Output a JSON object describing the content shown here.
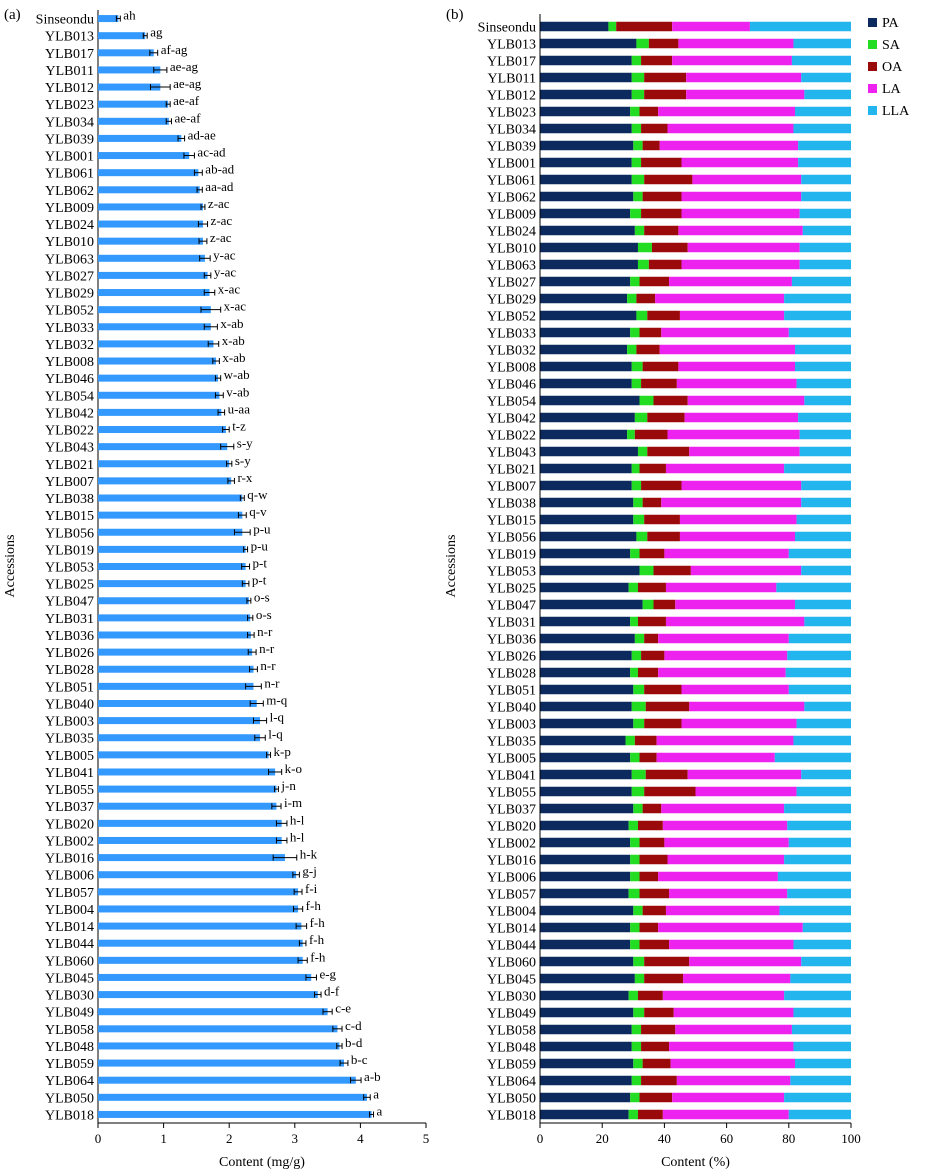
{
  "panels": {
    "a": {
      "label": "(a)"
    },
    "b": {
      "label": "(b)"
    }
  },
  "colors": {
    "bar_a": "#3399ff",
    "PA": "#0c2a5e",
    "SA": "#22dd22",
    "OA": "#9b0a0a",
    "LA": "#ee22ee",
    "LLA": "#22b5ee"
  },
  "chart_data": [
    {
      "id": "a",
      "type": "bar",
      "orientation": "horizontal",
      "title": "",
      "xlabel": "Content (mg/g)",
      "ylabel": "Accessions",
      "xlim": [
        0,
        5
      ],
      "xticks": [
        "0",
        "1",
        "2",
        "3",
        "4",
        "5"
      ],
      "grid": false,
      "error_bars": true,
      "categories": [
        "Sinseondu",
        "YLB013",
        "YLB017",
        "YLB011",
        "YLB012",
        "YLB023",
        "YLB034",
        "YLB039",
        "YLB001",
        "YLB061",
        "YLB062",
        "YLB009",
        "YLB024",
        "YLB010",
        "YLB063",
        "YLB027",
        "YLB029",
        "YLB052",
        "YLB033",
        "YLB032",
        "YLB008",
        "YLB046",
        "YLB054",
        "YLB042",
        "YLB022",
        "YLB043",
        "YLB021",
        "YLB007",
        "YLB038",
        "YLB015",
        "YLB056",
        "YLB019",
        "YLB053",
        "YLB025",
        "YLB047",
        "YLB031",
        "YLB036",
        "YLB026",
        "YLB028",
        "YLB051",
        "YLB040",
        "YLB003",
        "YLB035",
        "YLB005",
        "YLB041",
        "YLB055",
        "YLB037",
        "YLB020",
        "YLB002",
        "YLB016",
        "YLB006",
        "YLB057",
        "YLB004",
        "YLB014",
        "YLB044",
        "YLB060",
        "YLB045",
        "YLB030",
        "YLB049",
        "YLB058",
        "YLB048",
        "YLB059",
        "YLB064",
        "YLB050",
        "YLB018"
      ],
      "values": [
        0.31,
        0.72,
        0.85,
        0.95,
        0.95,
        1.07,
        1.08,
        1.27,
        1.39,
        1.53,
        1.55,
        1.6,
        1.6,
        1.6,
        1.63,
        1.67,
        1.7,
        1.72,
        1.72,
        1.76,
        1.8,
        1.83,
        1.85,
        1.88,
        1.95,
        1.97,
        2.0,
        2.03,
        2.2,
        2.2,
        2.2,
        2.25,
        2.25,
        2.25,
        2.3,
        2.32,
        2.33,
        2.35,
        2.37,
        2.37,
        2.42,
        2.47,
        2.47,
        2.6,
        2.7,
        2.72,
        2.72,
        2.8,
        2.8,
        2.85,
        3.02,
        3.05,
        3.05,
        3.1,
        3.12,
        3.12,
        3.25,
        3.35,
        3.5,
        3.65,
        3.68,
        3.75,
        3.93,
        4.1,
        4.17
      ],
      "errors": [
        0.03,
        0.03,
        0.06,
        0.1,
        0.15,
        0.03,
        0.04,
        0.05,
        0.08,
        0.06,
        0.04,
        0.03,
        0.07,
        0.06,
        0.08,
        0.05,
        0.08,
        0.15,
        0.1,
        0.08,
        0.05,
        0.04,
        0.06,
        0.05,
        0.05,
        0.1,
        0.04,
        0.05,
        0.03,
        0.06,
        0.12,
        0.03,
        0.06,
        0.05,
        0.03,
        0.04,
        0.05,
        0.06,
        0.06,
        0.12,
        0.1,
        0.1,
        0.08,
        0.03,
        0.1,
        0.03,
        0.07,
        0.08,
        0.08,
        0.18,
        0.05,
        0.06,
        0.07,
        0.08,
        0.05,
        0.07,
        0.08,
        0.05,
        0.07,
        0.07,
        0.04,
        0.06,
        0.08,
        0.05,
        0.03
      ],
      "annotations": [
        "ah",
        "ag",
        "af-ag",
        "ae-ag",
        "ae-ag",
        "ae-af",
        "ae-af",
        "ad-ae",
        "ac-ad",
        "ab-ad",
        "aa-ad",
        "z-ac",
        "z-ac",
        "z-ac",
        "y-ac",
        "y-ac",
        "x-ac",
        "x-ac",
        "x-ab",
        "x-ab",
        "x-ab",
        "w-ab",
        "v-ab",
        "u-aa",
        "t-z",
        "s-y",
        "s-y",
        "r-x",
        "q-w",
        "q-v",
        "p-u",
        "p-u",
        "p-t",
        "p-t",
        "o-s",
        "o-s",
        "n-r",
        "n-r",
        "n-r",
        "n-r",
        "m-q",
        "l-q",
        "l-q",
        "k-p",
        "k-o",
        "j-n",
        "i-m",
        "h-l",
        "h-l",
        "h-k",
        "g-j",
        "f-i",
        "f-h",
        "f-h",
        "f-h",
        "f-h",
        "e-g",
        "d-f",
        "c-e",
        "c-d",
        "b-d",
        "b-c",
        "a-b",
        "a",
        "a"
      ]
    },
    {
      "id": "b",
      "type": "bar",
      "stacked": true,
      "orientation": "horizontal",
      "title": "",
      "xlabel": "Content (%)",
      "ylabel": "Accessions",
      "xlim": [
        0,
        100
      ],
      "xticks": [
        "0",
        "20",
        "40",
        "60",
        "80",
        "100"
      ],
      "grid": false,
      "legend_position": "top-right",
      "categories": [
        "Sinseondu",
        "YLB013",
        "YLB017",
        "YLB011",
        "YLB012",
        "YLB023",
        "YLB034",
        "YLB039",
        "YLB001",
        "YLB061",
        "YLB062",
        "YLB009",
        "YLB024",
        "YLB010",
        "YLB063",
        "YLB027",
        "YLB029",
        "YLB052",
        "YLB033",
        "YLB032",
        "YLB008",
        "YLB046",
        "YLB054",
        "YLB042",
        "YLB022",
        "YLB043",
        "YLB021",
        "YLB007",
        "YLB038",
        "YLB015",
        "YLB056",
        "YLB019",
        "YLB053",
        "YLB025",
        "YLB047",
        "YLB031",
        "YLB036",
        "YLB026",
        "YLB028",
        "YLB051",
        "YLB040",
        "YLB003",
        "YLB035",
        "YLB005",
        "YLB041",
        "YLB055",
        "YLB037",
        "YLB020",
        "YLB002",
        "YLB016",
        "YLB006",
        "YLB057",
        "YLB004",
        "YLB014",
        "YLB044",
        "YLB060",
        "YLB045",
        "YLB030",
        "YLB049",
        "YLB058",
        "YLB048",
        "YLB059",
        "YLB064",
        "YLB050",
        "YLB018"
      ],
      "series": [
        {
          "name": "PA",
          "values": [
            22,
            31,
            29.5,
            29.5,
            29.5,
            29,
            29.5,
            30,
            29.5,
            29.5,
            30,
            29,
            30.5,
            31.5,
            31.5,
            29,
            28,
            31,
            29,
            28,
            29.5,
            29.5,
            32,
            30.5,
            28,
            31.5,
            29.5,
            29.5,
            30,
            30,
            31,
            29,
            32,
            28.5,
            33,
            29,
            30.5,
            29.5,
            29,
            30,
            29.5,
            30,
            27.5,
            29,
            29.5,
            29.5,
            30,
            28.5,
            29,
            29,
            29,
            28.5,
            30,
            29,
            29,
            30,
            30.5,
            28.5,
            30,
            29.5,
            29.5,
            30,
            29.5,
            29,
            28.5
          ]
        },
        {
          "name": "SA",
          "values": [
            2.5,
            4,
            3,
            4,
            4,
            3,
            3,
            3,
            3,
            4,
            3,
            3.5,
            3,
            4.5,
            3.5,
            3,
            3,
            3.5,
            3,
            3,
            3.5,
            3,
            4.5,
            4,
            2.5,
            3,
            2.5,
            3,
            3,
            3.5,
            3.5,
            3,
            4.5,
            3,
            3.5,
            2.5,
            3,
            3,
            2.5,
            3.5,
            4.5,
            3.5,
            3,
            3,
            4.5,
            4,
            3,
            3,
            3,
            3,
            3,
            3.5,
            3,
            3,
            3,
            3.5,
            3,
            3,
            3.5,
            3,
            3,
            3,
            3,
            3,
            3
          ]
        },
        {
          "name": "OA",
          "values": [
            18,
            9.5,
            10,
            13.5,
            13.5,
            6,
            8.5,
            5.5,
            13,
            15.5,
            12.5,
            13,
            11,
            11.5,
            10.5,
            9.5,
            6,
            10.5,
            7,
            7.5,
            11.5,
            11.5,
            11,
            12,
            10.5,
            13.5,
            8.5,
            13,
            6,
            11.5,
            10.5,
            8,
            12,
            9,
            7,
            9,
            4.5,
            7.5,
            6.5,
            12,
            14,
            12,
            7,
            5.5,
            13.5,
            16.5,
            6,
            8,
            8,
            9,
            6,
            9.5,
            7.5,
            6,
            9.5,
            14.5,
            12.5,
            8,
            9.5,
            11,
            9,
            9,
            11.5,
            10.5,
            8
          ]
        },
        {
          "name": "LA",
          "values": [
            25,
            37,
            38.5,
            37,
            38,
            44,
            40.5,
            44.5,
            37.5,
            35,
            38.5,
            38,
            40,
            36,
            38,
            39.5,
            41.5,
            33.5,
            41,
            43.5,
            37.5,
            38.5,
            37.5,
            36.5,
            42.5,
            35.5,
            38,
            38.5,
            45,
            37.5,
            37,
            40,
            35.5,
            35.5,
            38.5,
            44.5,
            42,
            39.5,
            41,
            34.5,
            37,
            37,
            44,
            38,
            36.5,
            32.5,
            39.5,
            40,
            40,
            37.5,
            38.5,
            38,
            36.5,
            46.5,
            40,
            36,
            34.5,
            39,
            38.5,
            37.5,
            40,
            40,
            36.5,
            36,
            40.5
          ]
        },
        {
          "name": "LLA",
          "values": [
            32.5,
            18.5,
            19,
            16,
            15,
            18,
            18.5,
            17,
            17,
            16,
            16,
            16.5,
            15.5,
            16.5,
            16.5,
            19,
            21.5,
            21.5,
            20,
            18,
            18,
            17.5,
            15,
            17,
            16.5,
            16.5,
            21.5,
            16,
            16,
            17.5,
            18,
            20,
            16,
            24,
            18,
            15,
            20,
            20.5,
            21,
            20,
            15,
            17.5,
            18.5,
            24.5,
            16,
            17.5,
            21.5,
            20.5,
            20,
            21.5,
            23.5,
            20.5,
            23,
            15.5,
            18.5,
            16,
            19.5,
            21.5,
            18.5,
            19,
            18.5,
            18,
            19.5,
            21.5,
            20
          ]
        }
      ]
    }
  ]
}
